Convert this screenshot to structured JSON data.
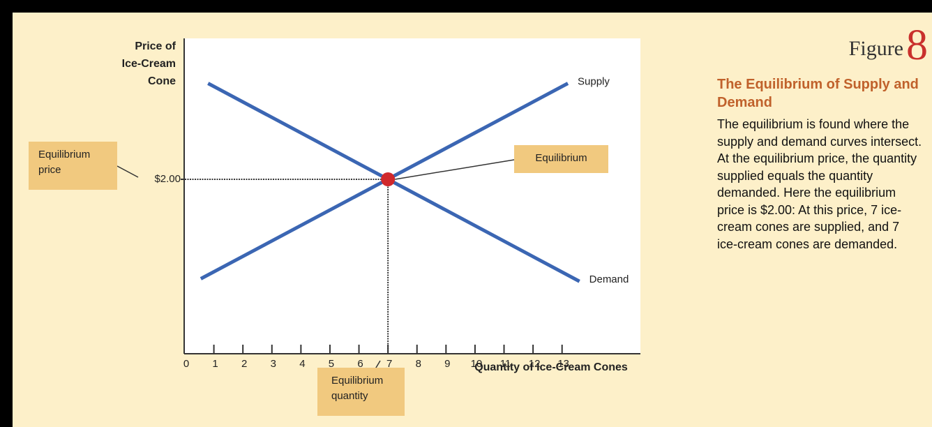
{
  "chart_data": {
    "type": "line",
    "y_label_lines": [
      "Price of",
      "Ice-Cream",
      "Cone"
    ],
    "x_label": "Quantity of Ice-Cream Cones",
    "xlim": [
      0,
      15.7
    ],
    "ylim": [
      0,
      3.6
    ],
    "xticks": [
      0,
      1,
      2,
      3,
      4,
      5,
      6,
      7,
      8,
      9,
      10,
      11,
      12,
      13
    ],
    "yticks": [
      {
        "value": 2,
        "label": "$2.00"
      }
    ],
    "series": [
      {
        "name": "Supply",
        "color": "#3b66b3",
        "x": [
          0.55,
          13.2
        ],
        "values": [
          0.86,
          3.1
        ]
      },
      {
        "name": "Demand",
        "color": "#3b66b3",
        "x": [
          0.8,
          13.6
        ],
        "values": [
          3.1,
          0.83
        ]
      }
    ],
    "equilibrium": {
      "x": 7,
      "y": 2,
      "color": "#d0282b"
    },
    "annotations": [
      "Equilibrium price",
      "Equilibrium",
      "Equilibrium quantity"
    ]
  },
  "figure": {
    "label": "Figure",
    "number": "8",
    "title": "The Equilibrium of Supply and Demand",
    "caption": "The equilibrium is found where the supply and demand curves intersect. At the equilibrium price, the quantity supplied equals the quantity demanded. Here the equilibrium price is $2.00: At this price, 7 ice-cream cones are supplied, and 7 ice-cream cones are demanded."
  }
}
